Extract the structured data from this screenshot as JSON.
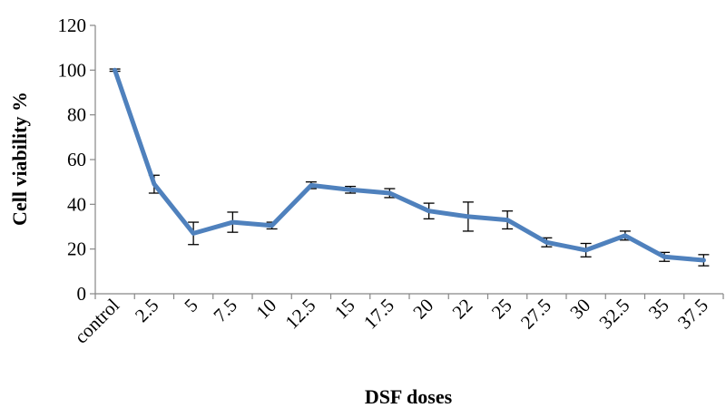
{
  "chart_data": {
    "type": "line",
    "title": "",
    "xlabel": "DSF doses",
    "ylabel": "Cell viability %",
    "categories": [
      "control",
      "2.5",
      "5",
      "7.5",
      "10",
      "12.5",
      "15",
      "17.5",
      "20",
      "22",
      "25",
      "27.5",
      "30",
      "32.5",
      "35",
      "37.5"
    ],
    "series": [
      {
        "values": [
          100,
          49,
          27,
          32,
          30.5,
          48.5,
          46.5,
          45,
          37,
          34.5,
          33,
          23,
          19.5,
          26,
          16.5,
          15
        ],
        "errors": [
          0.5,
          4,
          5,
          4.5,
          1.5,
          1.5,
          1.5,
          2,
          3.5,
          6.5,
          4,
          2,
          3,
          2,
          2,
          2.5
        ],
        "color": "#4f81bd"
      }
    ],
    "ylim": [
      0,
      120
    ],
    "yticks": [
      0,
      20,
      40,
      60,
      80,
      100,
      120
    ],
    "grid": false,
    "legend": "none"
  }
}
